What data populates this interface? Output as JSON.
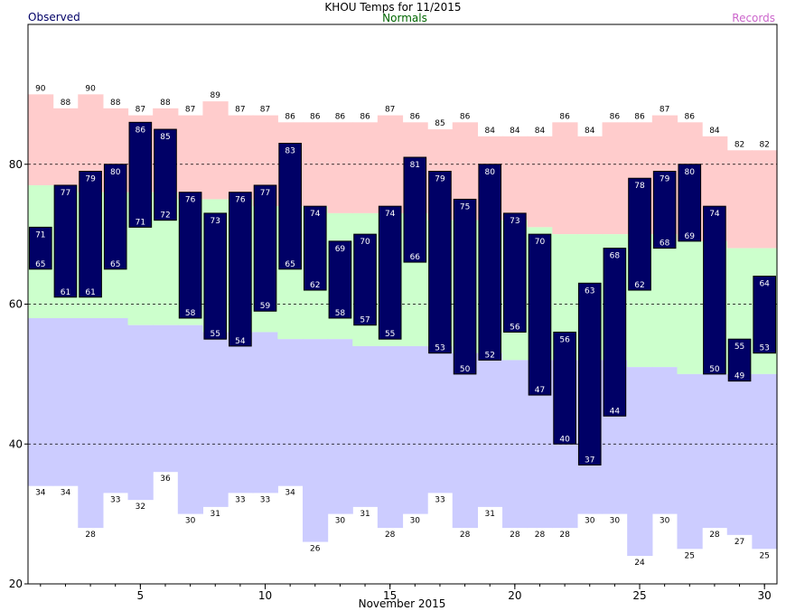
{
  "chart_data": {
    "type": "bar",
    "title": "KHOU Temps for 11/2015",
    "legend": {
      "observed": "Observed",
      "normals": "Normals",
      "records": "Records",
      "placement": "top"
    },
    "xlabel": "November 2015",
    "ylabel": "",
    "xlim": [
      0.5,
      30.5
    ],
    "ylim": [
      20,
      100
    ],
    "x_ticks": [
      5,
      10,
      15,
      20,
      25,
      30
    ],
    "y_ticks": [
      20,
      40,
      60,
      80
    ],
    "grid_y": [
      40,
      60,
      80
    ],
    "days": [
      1,
      2,
      3,
      4,
      5,
      6,
      7,
      8,
      9,
      10,
      11,
      12,
      13,
      14,
      15,
      16,
      17,
      18,
      19,
      20,
      21,
      22,
      23,
      24,
      25,
      26,
      27,
      28,
      29,
      30
    ],
    "series": [
      {
        "name": "Observed",
        "key": "observed_high",
        "values": [
          71,
          77,
          79,
          80,
          86,
          85,
          76,
          73,
          76,
          77,
          83,
          74,
          69,
          70,
          74,
          81,
          79,
          75,
          80,
          73,
          70,
          56,
          63,
          68,
          78,
          79,
          80,
          74,
          55,
          64
        ]
      },
      {
        "name": "Observed",
        "key": "observed_low",
        "values": [
          65,
          61,
          61,
          65,
          71,
          72,
          58,
          55,
          54,
          59,
          65,
          62,
          58,
          57,
          55,
          66,
          53,
          50,
          52,
          56,
          47,
          40,
          37,
          44,
          62,
          68,
          69,
          50,
          49,
          53
        ]
      },
      {
        "name": "Records",
        "key": "record_high",
        "values": [
          90,
          88,
          90,
          88,
          87,
          88,
          87,
          89,
          87,
          87,
          86,
          86,
          86,
          86,
          87,
          86,
          85,
          86,
          84,
          84,
          84,
          86,
          84,
          86,
          86,
          87,
          86,
          84,
          82,
          82
        ]
      },
      {
        "name": "Records",
        "key": "record_low",
        "values": [
          34,
          34,
          28,
          33,
          32,
          36,
          30,
          31,
          33,
          33,
          34,
          26,
          30,
          31,
          28,
          30,
          33,
          28,
          31,
          28,
          28,
          28,
          30,
          30,
          24,
          30,
          25,
          28,
          27,
          25
        ]
      },
      {
        "name": "Normals",
        "key": "normal_high",
        "values": [
          77,
          77,
          76,
          76,
          76,
          76,
          75,
          75,
          75,
          74,
          74,
          74,
          73,
          73,
          73,
          73,
          72,
          72,
          72,
          72,
          71,
          70,
          70,
          70,
          70,
          70,
          69,
          69,
          68,
          68
        ]
      },
      {
        "name": "Normals",
        "key": "normal_low",
        "values": [
          58,
          58,
          58,
          58,
          57,
          57,
          57,
          56,
          56,
          56,
          55,
          55,
          55,
          54,
          54,
          54,
          54,
          53,
          53,
          52,
          52,
          52,
          52,
          52,
          51,
          51,
          50,
          50,
          50,
          50
        ]
      }
    ],
    "colors": {
      "observed": "#000066",
      "observed_label": "#000066",
      "normals_label": "#006600",
      "records_label": "#cc66cc",
      "record_high_band": "#ffcccc",
      "normal_band": "#ccffcc",
      "record_low_band": "#ccccff",
      "bar_text": "#ffffff",
      "grid": "#000000"
    }
  }
}
